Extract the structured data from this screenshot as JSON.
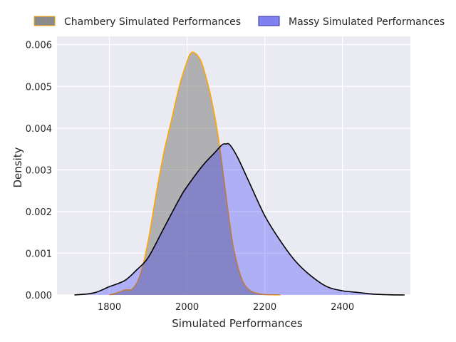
{
  "chart_data": {
    "type": "area",
    "title": "",
    "xlabel": "Simulated Performances",
    "ylabel": "Density",
    "xlim": [
      1665,
      2575
    ],
    "ylim": [
      0,
      0.0062
    ],
    "x_ticks": [
      {
        "value": 1800,
        "label": "1800"
      },
      {
        "value": 2000,
        "label": "2000"
      },
      {
        "value": 2200,
        "label": "2200"
      },
      {
        "value": 2400,
        "label": "2400"
      }
    ],
    "y_ticks": [
      {
        "value": 0,
        "label": "0.000"
      },
      {
        "value": 0.001,
        "label": "0.001"
      },
      {
        "value": 0.002,
        "label": "0.002"
      },
      {
        "value": 0.003,
        "label": "0.003"
      },
      {
        "value": 0.004,
        "label": "0.004"
      },
      {
        "value": 0.005,
        "label": "0.005"
      },
      {
        "value": 0.006,
        "label": "0.006"
      }
    ],
    "grid": true,
    "legend_position": "top",
    "series": [
      {
        "name": "Chambery Simulated Performances",
        "fill": "#808080",
        "fill_opacity": 0.55,
        "line": "#ffa500",
        "x": [
          1800,
          1820,
          1840,
          1860,
          1880,
          1900,
          1920,
          1940,
          1960,
          1980,
          2000,
          2010,
          2020,
          2030,
          2040,
          2060,
          2080,
          2100,
          2110,
          2120,
          2140,
          2160,
          2180,
          2200,
          2240
        ],
        "y": [
          0.0,
          5e-05,
          0.00012,
          0.00015,
          0.0005,
          0.0013,
          0.0024,
          0.0034,
          0.0042,
          0.005,
          0.0056,
          0.0058,
          0.0058,
          0.0057,
          0.0055,
          0.0048,
          0.0038,
          0.0024,
          0.0017,
          0.0011,
          0.0004,
          0.00012,
          4e-05,
          1e-05,
          0.0
        ]
      },
      {
        "name": "Massy Simulated Performances",
        "fill": "#0000ff",
        "fill_opacity": 0.25,
        "line": "#000000",
        "x": [
          1710,
          1760,
          1800,
          1840,
          1870,
          1900,
          1940,
          1980,
          2000,
          2040,
          2070,
          2090,
          2100,
          2110,
          2130,
          2160,
          2200,
          2240,
          2280,
          2320,
          2360,
          2400,
          2440,
          2480,
          2520,
          2560
        ],
        "y": [
          0.0,
          5e-05,
          0.0002,
          0.00035,
          0.0006,
          0.0009,
          0.0016,
          0.0023,
          0.0026,
          0.0031,
          0.0034,
          0.0036,
          0.00362,
          0.0036,
          0.0033,
          0.0027,
          0.0019,
          0.0013,
          0.0008,
          0.00045,
          0.0002,
          0.0001,
          6e-05,
          2e-05,
          5e-06,
          0.0
        ]
      }
    ]
  }
}
